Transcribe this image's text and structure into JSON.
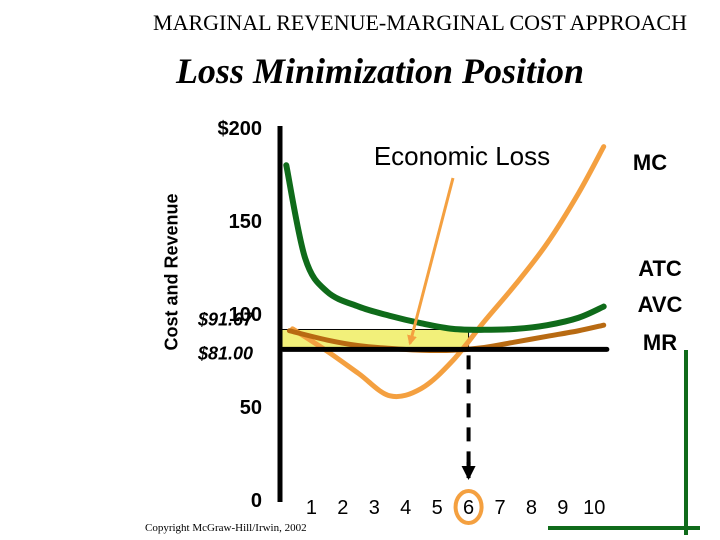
{
  "header": {
    "supertitle": "MARGINAL REVENUE-MARGINAL COST APPROACH",
    "title": "Loss Minimization Position"
  },
  "copyright": "Copyright McGraw-Hill/Irwin, 2002",
  "colors": {
    "mc": "#f4a040",
    "atc": "#0f6b1a",
    "avc": "#b86a12",
    "mr": "#000000",
    "loss_area": "#f2f07a",
    "arrow": "#f4a040"
  },
  "chart_data": {
    "type": "line",
    "ylabel": "Cost and Revenue",
    "xlabel": "",
    "xlim": [
      0,
      10.5
    ],
    "ylim": [
      0,
      200
    ],
    "x_ticks": [
      "1",
      "2",
      "3",
      "4",
      "5",
      "6",
      "7",
      "8",
      "9",
      "10"
    ],
    "y_ticks": [
      {
        "value": 200,
        "label": "$200"
      },
      {
        "value": 150,
        "label": "150"
      },
      {
        "value": 100,
        "label": "100"
      },
      {
        "value": 50,
        "label": "50"
      },
      {
        "value": 0,
        "label": "0"
      }
    ],
    "highlighted_values": [
      {
        "value": 91.67,
        "label": "$91.67"
      },
      {
        "value": 81.0,
        "label": "$81.00"
      }
    ],
    "highlighted_quantity": {
      "x": 6,
      "label": "6"
    },
    "series": [
      {
        "name": "MC",
        "key": "mc",
        "x": [
          0.4,
          1.5,
          2.5,
          3.5,
          4.5,
          5.5,
          6.5,
          7.5,
          8.5,
          9.5,
          10.3
        ],
        "y": [
          92,
          80,
          68,
          56,
          60,
          75,
          96,
          116,
          138,
          165,
          190
        ]
      },
      {
        "name": "ATC",
        "key": "atc",
        "x": [
          0.2,
          0.8,
          1.5,
          2.5,
          3.5,
          4.5,
          5.5,
          6.5,
          7.5,
          8.5,
          9.5,
          10.3
        ],
        "y": [
          180,
          130,
          112,
          104,
          99,
          95,
          92,
          91.5,
          92,
          94,
          98,
          104
        ]
      },
      {
        "name": "AVC",
        "key": "avc",
        "x": [
          0.3,
          1.5,
          2.5,
          3.5,
          4.5,
          5.5,
          6.5,
          7.5,
          8.5,
          9.5,
          10.3
        ],
        "y": [
          91,
          86,
          83,
          81.5,
          80.5,
          80.5,
          82,
          85,
          88,
          91,
          94
        ]
      },
      {
        "name": "MR",
        "key": "mr",
        "x": [
          0.1,
          10.4
        ],
        "y": [
          81,
          81
        ]
      }
    ],
    "annotations": [
      {
        "text": "Economic Loss",
        "key": "loss"
      }
    ]
  }
}
